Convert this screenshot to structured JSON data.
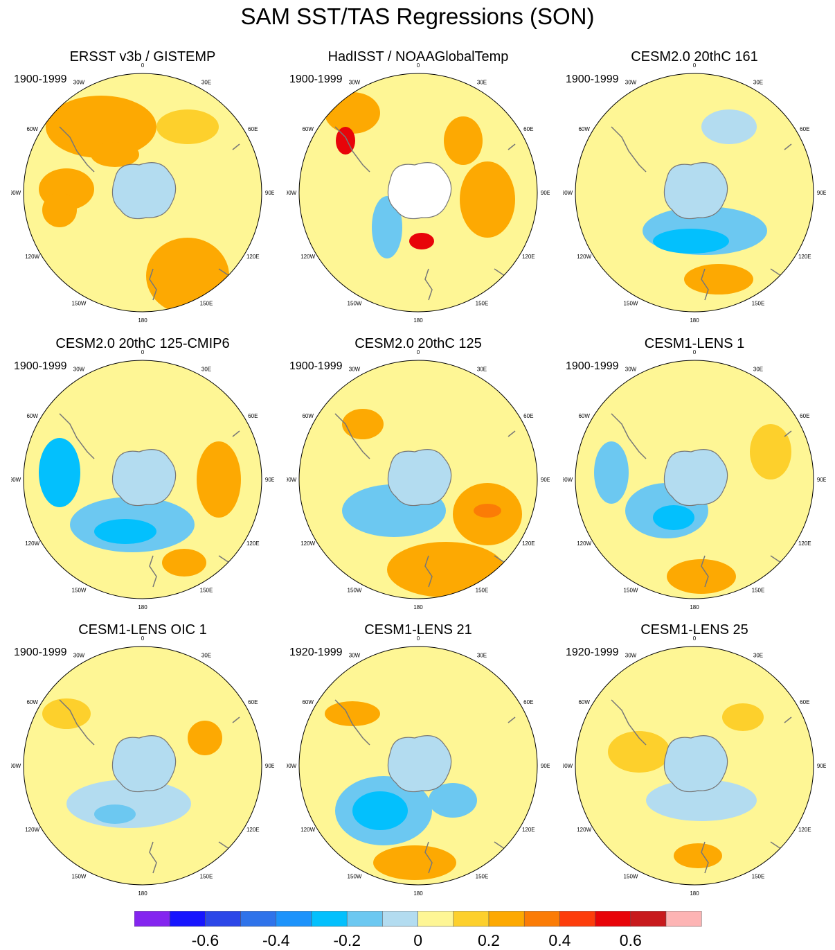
{
  "title": "SAM SST/TAS Regressions (SON)",
  "lon_labels": [
    "0",
    "30E",
    "60E",
    "90E",
    "120E",
    "150E",
    "180",
    "150W",
    "120W",
    "90W",
    "60W",
    "30W"
  ],
  "colors": {
    "ocean_background": "#fef695",
    "antarctica_fill": "#b3dcf0",
    "coastline": "#777777",
    "missing": "#ffffff"
  },
  "colorbar": {
    "labels": [
      "-0.6",
      "-0.4",
      "-0.2",
      "0",
      "0.2",
      "0.4",
      "0.6"
    ],
    "label_values": [
      -0.6,
      -0.4,
      -0.2,
      0,
      0.2,
      0.4,
      0.6
    ],
    "colors": [
      "#8425ef",
      "#1715fe",
      "#2c47e8",
      "#2f73ea",
      "#1d93fb",
      "#03c0fd",
      "#6cc8f1",
      "#b3dcf0",
      "#fef695",
      "#fdd02c",
      "#fda902",
      "#fb7c06",
      "#fd3d0b",
      "#e80409",
      "#c81a1d",
      "#fdb4b4"
    ],
    "min": -0.8,
    "max": 0.8,
    "interval": 0.1
  },
  "panels": [
    {
      "title": "ERSST v3b / GISTEMP",
      "years": "1900-1999",
      "dominant_range": [
        0.1,
        0.3
      ],
      "min_level": -0.1,
      "max_level": 0.3
    },
    {
      "title": "HadISST / NOAAGlobalTemp",
      "years": "1900-1999",
      "dominant_range": [
        0.1,
        0.4
      ],
      "min_level": -0.2,
      "max_level": 0.6
    },
    {
      "title": "CESM2.0 20thC 161",
      "years": "1900-1999",
      "dominant_range": [
        -0.2,
        0.2
      ],
      "min_level": -0.3,
      "max_level": 0.3
    },
    {
      "title": "CESM2.0 20thC 125-CMIP6",
      "years": "1900-1999",
      "dominant_range": [
        -0.2,
        0.2
      ],
      "min_level": -0.3,
      "max_level": 0.4
    },
    {
      "title": "CESM2.0 20thC 125",
      "years": "1900-1999",
      "dominant_range": [
        -0.2,
        0.3
      ],
      "min_level": -0.3,
      "max_level": 0.4
    },
    {
      "title": "CESM1-LENS 1",
      "years": "1900-1999",
      "dominant_range": [
        -0.2,
        0.2
      ],
      "min_level": -0.3,
      "max_level": 0.3
    },
    {
      "title": "CESM1-LENS OIC 1",
      "years": "1900-1999",
      "dominant_range": [
        -0.2,
        0.2
      ],
      "min_level": -0.3,
      "max_level": 0.2
    },
    {
      "title": "CESM1-LENS 21",
      "years": "1920-1999",
      "dominant_range": [
        -0.2,
        0.2
      ],
      "min_level": -0.4,
      "max_level": 0.3
    },
    {
      "title": "CESM1-LENS 25",
      "years": "1920-1999",
      "dominant_range": [
        -0.2,
        0.2
      ],
      "min_level": -0.2,
      "max_level": 0.2
    }
  ]
}
